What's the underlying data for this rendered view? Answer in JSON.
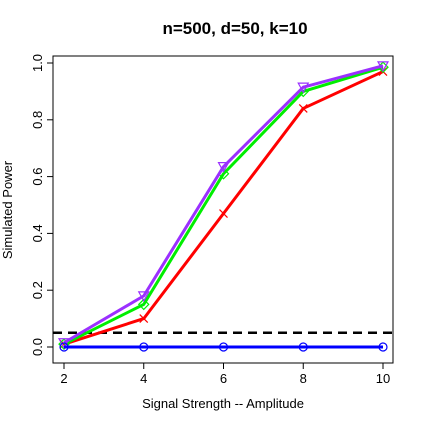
{
  "chart_data": {
    "type": "line",
    "title": "n=500, d=50, k=10",
    "xlabel": "Signal Strength -- Amplitude",
    "ylabel": "Simulated Power",
    "x": [
      2,
      4,
      6,
      8,
      10
    ],
    "xlim": [
      2,
      10
    ],
    "ylim": [
      0,
      1
    ],
    "xticks": [
      "2",
      "4",
      "6",
      "8",
      "10"
    ],
    "yticks": [
      "0.0",
      "0.2",
      "0.4",
      "0.6",
      "0.8",
      "1.0"
    ],
    "grid": false,
    "reference_line": {
      "y": 0.05,
      "style": "dashed",
      "color": "#000000"
    },
    "series": [
      {
        "values": [
          0.0,
          0.0,
          0.0,
          0.0,
          0.0
        ],
        "color": "#0000ff",
        "marker": "circle"
      },
      {
        "values": [
          0.01,
          0.1,
          0.47,
          0.84,
          0.97
        ],
        "color": "#ff0000",
        "marker": "x"
      },
      {
        "values": [
          0.01,
          0.15,
          0.61,
          0.9,
          0.985
        ],
        "color": "#00ee00",
        "marker": "diamond"
      },
      {
        "values": [
          0.015,
          0.18,
          0.635,
          0.915,
          0.99
        ],
        "color": "#9b30ff",
        "marker": "triangle-down"
      }
    ]
  }
}
